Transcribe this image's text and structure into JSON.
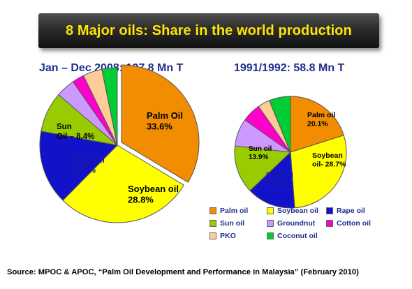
{
  "title": "8 Major oils: Share in the world production",
  "source": "Source: MPOC & APOC, “Palm Oil Development and Performance in Malaysia” (February 2010)",
  "legend": [
    {
      "label": "Palm oil",
      "color": "#f28c00"
    },
    {
      "label": "Soybean oil",
      "color": "#ffff00"
    },
    {
      "label": "Rape oil",
      "color": "#1212c8"
    },
    {
      "label": "Sun oil",
      "color": "#99cc00"
    },
    {
      "label": "Groundnut",
      "color": "#cc99ff"
    },
    {
      "label": "Cotton oil",
      "color": "#ff00cc"
    },
    {
      "label": "PKO",
      "color": "#ffcc99"
    },
    {
      "label": "Coconut oil",
      "color": "#00cc33"
    }
  ],
  "chart_data": [
    {
      "type": "pie",
      "title": "Jan – Dec 2008: 127.8 Mn T",
      "categories": [
        "Palm oil",
        "Soybean oil",
        "Rape oil",
        "Sun oil",
        "Groundnut",
        "Cotton oil",
        "PKO",
        "Coconut oil"
      ],
      "values": [
        33.6,
        28.8,
        15.5,
        8.4,
        4.0,
        2.5,
        4.0,
        3.2
      ],
      "labels": [
        {
          "lines": [
            "Palm Oil",
            "33.6%"
          ]
        },
        {
          "lines": [
            "Soybean oil",
            "28.8%"
          ]
        },
        {
          "lines": [
            "Rape oil",
            "15.5%"
          ]
        },
        {
          "lines": [
            "Sun",
            "Oil – 8.4%"
          ]
        }
      ]
    },
    {
      "type": "pie",
      "title": "1991/1992: 58.8 Mn T",
      "categories": [
        "Palm oil",
        "Soybean oil",
        "Rape oil",
        "Sun oil",
        "Groundnut",
        "Cotton oil",
        "PKO",
        "Coconut oil"
      ],
      "values": [
        20.1,
        28.7,
        14.1,
        13.9,
        8.0,
        5.5,
        3.5,
        6.2
      ],
      "labels": [
        {
          "lines": [
            "Palm oil",
            "20.1%"
          ]
        },
        {
          "lines": [
            "Soybean",
            "oil- 28.7%"
          ]
        },
        {
          "lines": [
            "Rape oil",
            "14.1%"
          ]
        },
        {
          "lines": [
            "Sun oil",
            "13.9%"
          ]
        }
      ]
    }
  ]
}
